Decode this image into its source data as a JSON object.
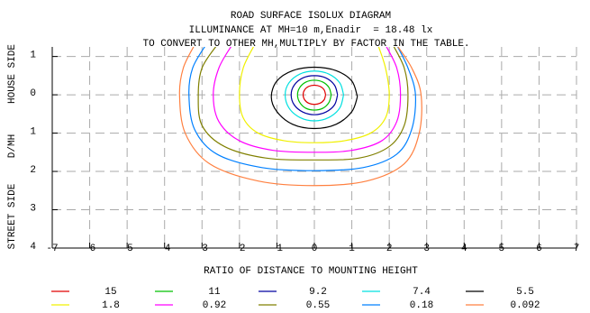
{
  "chart_data": {
    "type": "contour",
    "title": "ROAD SURFACE ISOLUX DIAGRAM",
    "subtitle": "ILLUMINANCE AT MH=10 m,Enadir  = 18.48 lx",
    "note": "TO CONVERT TO OTHER MH,MULTIPLY BY FACTOR IN THE TABLE.",
    "x_label": "RATIO OF DISTANCE TO MOUNTING HEIGHT",
    "y_labels": [
      "STREET SIDE",
      "D/MH",
      "HOUSE SIDE"
    ],
    "xlim": [
      -7,
      7
    ],
    "xticks": [
      -7,
      -6,
      -5,
      -4,
      -3,
      -2,
      -1,
      0,
      1,
      2,
      3,
      4,
      5,
      6,
      7
    ],
    "ylim": [
      -1.25,
      4
    ],
    "y_inverted": true,
    "yticks": [
      {
        "value": -1,
        "label": "1"
      },
      0,
      1,
      2,
      3,
      4
    ],
    "grid": true,
    "series": [
      {
        "name": "15",
        "color": "#e00000",
        "x": [
          0.3,
          0.26,
          0.15,
          0,
          -0.15,
          -0.26,
          -0.3,
          -0.26,
          -0.15,
          0,
          0.15,
          0.26,
          0.3
        ],
        "values": [
          0,
          0.13,
          0.22,
          0.25,
          0.22,
          0.13,
          0,
          -0.13,
          -0.22,
          -0.25,
          -0.22,
          -0.13,
          0
        ]
      },
      {
        "name": "11",
        "color": "#00c000",
        "x": [
          0.45,
          0.39,
          0.23,
          0,
          -0.23,
          -0.39,
          -0.45,
          -0.39,
          -0.23,
          0,
          0.23,
          0.39,
          0.45
        ],
        "values": [
          0,
          0.2,
          0.35,
          0.4,
          0.35,
          0.2,
          0,
          -0.19,
          -0.33,
          -0.38,
          -0.33,
          -0.19,
          0
        ]
      },
      {
        "name": "9.2",
        "color": "#0000a0",
        "x": [
          0.62,
          0.54,
          0.31,
          0,
          -0.31,
          -0.54,
          -0.62,
          -0.54,
          -0.31,
          0,
          0.31,
          0.54,
          0.62
        ],
        "values": [
          0,
          0.26,
          0.45,
          0.52,
          0.45,
          0.26,
          0,
          -0.25,
          -0.44,
          -0.5,
          -0.44,
          -0.25,
          0
        ]
      },
      {
        "name": "7.4",
        "color": "#00e0e0",
        "x": [
          0.78,
          0.68,
          0.39,
          0,
          -0.39,
          -0.68,
          -0.78,
          -0.68,
          -0.39,
          0,
          0.39,
          0.68,
          0.78
        ],
        "values": [
          0,
          0.34,
          0.59,
          0.68,
          0.59,
          0.34,
          0,
          -0.31,
          -0.54,
          -0.62,
          -0.54,
          -0.31,
          0
        ]
      },
      {
        "name": "5.5",
        "color": "#000000",
        "x": [
          1.15,
          1.0,
          0.58,
          0,
          -0.58,
          -1.0,
          -1.15,
          -1.0,
          -0.58,
          0,
          0.58,
          1.0,
          1.15
        ],
        "values": [
          0.05,
          0.44,
          0.77,
          0.88,
          0.77,
          0.44,
          0.05,
          -0.36,
          -0.63,
          -0.72,
          -0.63,
          -0.36,
          0.05
        ]
      },
      {
        "name": "1.8",
        "color": "#f0f000",
        "x": [
          -1.6,
          -1.9,
          -2.0,
          -1.9,
          -1.5,
          -0.8,
          0,
          0.8,
          1.5,
          1.9,
          2.0,
          1.9,
          1.7
        ],
        "values": [
          -1.3,
          -0.7,
          0,
          0.6,
          1.0,
          1.2,
          1.25,
          1.2,
          1.0,
          0.6,
          0,
          -0.7,
          -1.3
        ]
      },
      {
        "name": "0.92",
        "color": "#ff00ff",
        "x": [
          -2.2,
          -2.55,
          -2.7,
          -2.55,
          -2.0,
          -1.1,
          0,
          1.0,
          1.8,
          2.2,
          2.3,
          2.2,
          1.9
        ],
        "values": [
          -1.3,
          -0.7,
          0,
          0.7,
          1.2,
          1.45,
          1.5,
          1.45,
          1.2,
          0.7,
          0,
          -0.7,
          -1.3
        ]
      },
      {
        "name": "0.55",
        "color": "#808000",
        "x": [
          -2.6,
          -3.0,
          -3.1,
          -3.0,
          -2.4,
          -1.3,
          0,
          1.2,
          2.0,
          2.4,
          2.5,
          2.4,
          2.1
        ],
        "values": [
          -1.3,
          -0.7,
          0,
          0.8,
          1.35,
          1.65,
          1.7,
          1.65,
          1.35,
          0.8,
          0,
          -0.7,
          -1.3
        ]
      },
      {
        "name": "0.18",
        "color": "#0080ff",
        "x": [
          -2.9,
          -3.25,
          -3.35,
          -3.2,
          -2.6,
          -1.4,
          0,
          1.3,
          2.2,
          2.6,
          2.7,
          2.5,
          2.2
        ],
        "values": [
          -1.3,
          -0.7,
          0,
          0.9,
          1.55,
          1.9,
          1.98,
          1.9,
          1.55,
          0.9,
          0,
          -0.7,
          -1.3
        ]
      },
      {
        "name": "0.092",
        "color": "#ff8040",
        "x": [
          -3.2,
          -3.5,
          -3.6,
          -3.45,
          -2.8,
          -1.5,
          0,
          1.4,
          2.4,
          2.8,
          2.85,
          2.6,
          2.2
        ],
        "values": [
          -1.3,
          -0.7,
          0,
          1.0,
          1.8,
          2.25,
          2.37,
          2.25,
          1.8,
          1.0,
          0,
          -0.7,
          -1.3
        ]
      }
    ]
  }
}
